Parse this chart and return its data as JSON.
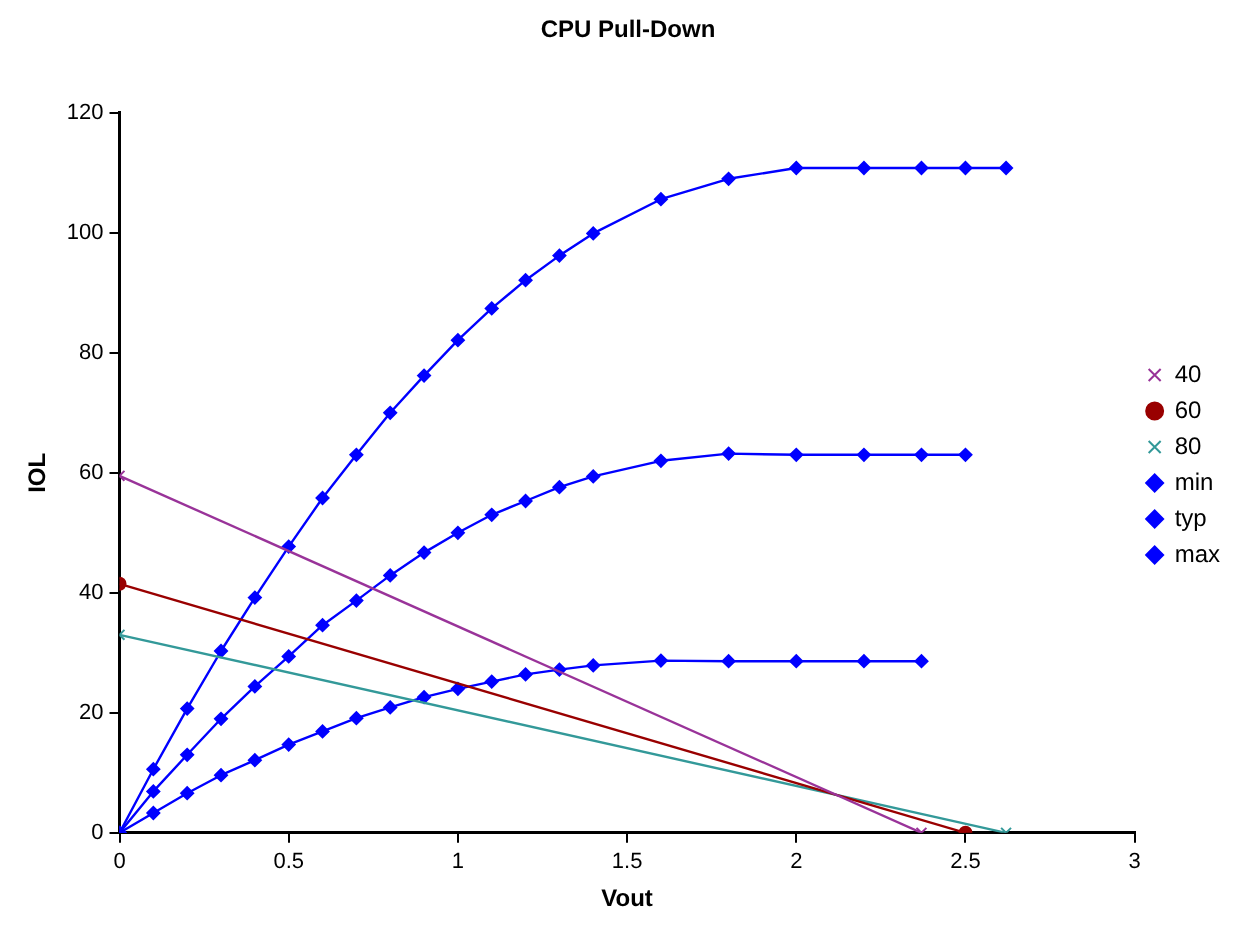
{
  "chart_data": {
    "type": "line",
    "title": "CPU Pull-Down",
    "xlabel": "Vout",
    "ylabel": "IOL",
    "xlim": [
      0,
      3
    ],
    "xticks": [
      0,
      0.5,
      1,
      1.5,
      2,
      2.5,
      3
    ],
    "ylim": [
      0,
      120
    ],
    "yticks": [
      0,
      20,
      40,
      60,
      80,
      100,
      120
    ],
    "grid": false,
    "legend": "right",
    "line_style": "solid",
    "series": [
      {
        "name": "40",
        "color": "#993399",
        "marker": "cross",
        "x": [
          0,
          2.37
        ],
        "values": [
          59.5,
          0
        ]
      },
      {
        "name": "60",
        "color": "#990000",
        "marker": "circle",
        "x": [
          0,
          2.5
        ],
        "values": [
          41.5,
          0
        ]
      },
      {
        "name": "80",
        "color": "#339999",
        "marker": "cross",
        "x": [
          0,
          2.62
        ],
        "values": [
          33,
          0
        ]
      },
      {
        "name": "min",
        "color": "#0000ff",
        "marker": "diamond",
        "x": [
          0,
          0.1,
          0.2,
          0.3,
          0.4,
          0.5,
          0.6,
          0.7,
          0.8,
          0.9,
          1.0,
          1.1,
          1.2,
          1.3,
          1.4,
          1.6,
          1.8,
          2.0,
          2.2,
          2.37
        ],
        "values": [
          0,
          3.3,
          6.6,
          9.6,
          12.1,
          14.7,
          16.9,
          19.1,
          20.9,
          22.6,
          24,
          25.2,
          26.4,
          27.2,
          27.9,
          28.7,
          28.6,
          28.6,
          28.6,
          28.6
        ]
      },
      {
        "name": "typ",
        "color": "#0000ff",
        "marker": "diamond",
        "x": [
          0,
          0.1,
          0.2,
          0.3,
          0.4,
          0.5,
          0.6,
          0.7,
          0.8,
          0.9,
          1.0,
          1.1,
          1.2,
          1.3,
          1.4,
          1.6,
          1.8,
          2.0,
          2.2,
          2.37,
          2.5
        ],
        "values": [
          0,
          6.9,
          13,
          19,
          24.4,
          29.4,
          34.6,
          38.7,
          42.9,
          46.7,
          50,
          53,
          55.3,
          57.6,
          59.4,
          62,
          63.2,
          63,
          63,
          63,
          63
        ]
      },
      {
        "name": "max",
        "color": "#0000ff",
        "marker": "diamond",
        "x": [
          0,
          0.1,
          0.2,
          0.3,
          0.4,
          0.5,
          0.6,
          0.7,
          0.8,
          0.9,
          1.0,
          1.1,
          1.2,
          1.3,
          1.4,
          1.6,
          1.8,
          2.0,
          2.2,
          2.37,
          2.5,
          2.62
        ],
        "values": [
          0,
          10.6,
          20.7,
          30.3,
          39.2,
          47.7,
          55.8,
          63,
          70,
          76.2,
          82.1,
          87.4,
          92.1,
          96.2,
          99.9,
          105.6,
          109,
          110.8,
          110.8,
          110.8,
          110.8,
          110.8
        ]
      }
    ]
  }
}
